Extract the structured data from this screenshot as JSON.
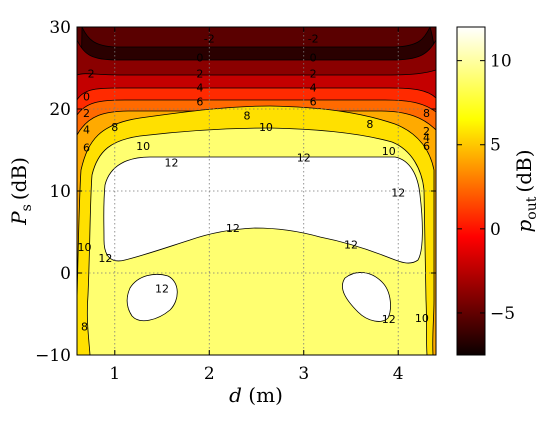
{
  "chart_data": {
    "type": "contour",
    "x": {
      "label_var": "d",
      "label_unit": "(m)",
      "range": [
        0.6,
        4.4
      ],
      "ticks": [
        1,
        2,
        3,
        4
      ],
      "tick_labels": [
        "1",
        "2",
        "3",
        "4"
      ]
    },
    "y": {
      "label_var": "P",
      "label_sub": "s",
      "label_unit": "(dB)",
      "range": [
        -10,
        30
      ],
      "ticks": [
        -10,
        0,
        10,
        20,
        30
      ],
      "tick_labels": [
        "−10",
        "0",
        "10",
        "20",
        "30"
      ]
    },
    "grid": true,
    "colorbar": {
      "label_var": "p",
      "label_sub": "out",
      "label_unit": "(dB)",
      "range": [
        -7.5,
        12
      ],
      "ticks": [
        -5,
        0,
        5,
        10
      ],
      "tick_labels": [
        "−5",
        "0",
        "5",
        "10"
      ],
      "colormap": "hot"
    },
    "levels": [
      -2,
      0,
      2,
      4,
      6,
      8,
      10,
      12
    ],
    "contour_labels": [
      {
        "text": "-2",
        "x": 2.0,
        "y": 28.6
      },
      {
        "text": "-2",
        "x": 3.1,
        "y": 28.6
      },
      {
        "text": "0",
        "x": 1.9,
        "y": 26.3
      },
      {
        "text": "0",
        "x": 3.1,
        "y": 26.3
      },
      {
        "text": "2",
        "x": 1.9,
        "y": 24.3
      },
      {
        "text": "2",
        "x": 3.1,
        "y": 24.3
      },
      {
        "text": "4",
        "x": 1.9,
        "y": 22.6
      },
      {
        "text": "4",
        "x": 3.1,
        "y": 22.6
      },
      {
        "text": "6",
        "x": 1.9,
        "y": 20.9
      },
      {
        "text": "6",
        "x": 3.1,
        "y": 20.9
      },
      {
        "text": "8",
        "x": 2.4,
        "y": 19.2
      },
      {
        "text": "8",
        "x": 1.0,
        "y": 17.8
      },
      {
        "text": "8",
        "x": 3.7,
        "y": 18.2
      },
      {
        "text": "10",
        "x": 2.6,
        "y": 17.8
      },
      {
        "text": "10",
        "x": 1.3,
        "y": 15.5
      },
      {
        "text": "10",
        "x": 3.9,
        "y": 14.9
      },
      {
        "text": "12",
        "x": 1.6,
        "y": 13.5
      },
      {
        "text": "12",
        "x": 3.0,
        "y": 14.1
      },
      {
        "text": "12",
        "x": 4.0,
        "y": 9.8
      },
      {
        "text": "12",
        "x": 2.25,
        "y": 5.5
      },
      {
        "text": "12",
        "x": 0.9,
        "y": 1.8
      },
      {
        "text": "12",
        "x": 1.5,
        "y": -1.9
      },
      {
        "text": "12",
        "x": 3.5,
        "y": 3.5
      },
      {
        "text": "12",
        "x": 3.9,
        "y": -5.6
      },
      {
        "text": "10",
        "x": 0.68,
        "y": 3.2
      },
      {
        "text": "8",
        "x": 0.68,
        "y": -6.5
      },
      {
        "text": "10",
        "x": 4.25,
        "y": -5.5
      },
      {
        "text": "2",
        "x": 0.75,
        "y": 24.3
      },
      {
        "text": "0",
        "x": 0.7,
        "y": 21.5
      },
      {
        "text": "2",
        "x": 0.7,
        "y": 19.5
      },
      {
        "text": "4",
        "x": 0.7,
        "y": 17.5
      },
      {
        "text": "6",
        "x": 0.7,
        "y": 15.3
      },
      {
        "text": "8",
        "x": 4.3,
        "y": 19.5
      },
      {
        "text": "6",
        "x": 4.3,
        "y": 15.5
      },
      {
        "text": "2",
        "x": 4.3,
        "y": 17.3
      },
      {
        "text": "4",
        "x": 4.3,
        "y": 16.5
      }
    ]
  }
}
